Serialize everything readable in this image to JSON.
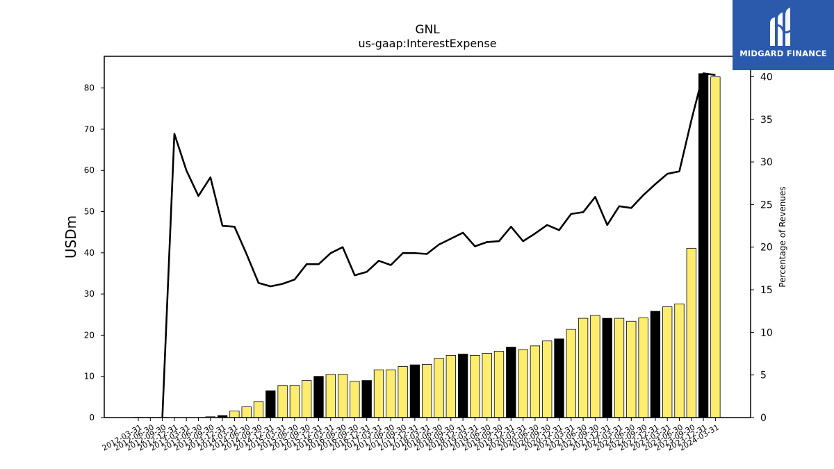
{
  "chart_data": {
    "type": "bar",
    "title": "GNL",
    "subtitle": "us-gaap:InterestExpense",
    "ylabel": "USDm",
    "y2label": "Percentage of Revenues",
    "ylim": [
      0,
      87.7
    ],
    "y2lim": [
      0,
      42.4
    ],
    "yticks": [
      0,
      10,
      20,
      30,
      40,
      50,
      60,
      70,
      80
    ],
    "y2ticks": [
      0,
      5,
      10,
      15,
      20,
      25,
      30,
      35,
      40
    ],
    "grid": false,
    "bar_colors": {
      "quarter": "#fced6f",
      "fiscal_year_end": "#000000"
    },
    "line_color": "#000000",
    "categories": [
      "2012-03-31",
      "2012-06-30",
      "2012-09-30",
      "2012-12-31",
      "2013-03-31",
      "2013-06-30",
      "2013-09-30",
      "2013-12-31",
      "2014-03-31",
      "2014-06-30",
      "2014-09-30",
      "2014-12-31",
      "2015-03-31",
      "2015-06-30",
      "2015-09-30",
      "2015-12-31",
      "2016-03-31",
      "2016-06-30",
      "2016-09-30",
      "2016-12-31",
      "2017-03-31",
      "2017-06-30",
      "2017-09-30",
      "2017-12-31",
      "2018-03-31",
      "2018-06-30",
      "2018-09-30",
      "2018-12-31",
      "2019-03-31",
      "2019-06-30",
      "2019-09-30",
      "2019-12-31",
      "2020-03-31",
      "2020-06-30",
      "2020-09-30",
      "2020-12-31",
      "2021-03-31",
      "2021-06-30",
      "2021-09-30",
      "2021-12-31",
      "2022-03-31",
      "2022-06-30",
      "2022-09-30",
      "2022-12-31",
      "2023-03-31",
      "2023-06-30",
      "2023-09-30",
      "2023-12-31",
      "2024-03-31"
    ],
    "series": [
      {
        "kind": "bar",
        "values": [
          0.05,
          0.05,
          0.05,
          0.0,
          0.0,
          0.0,
          0.2,
          0.5,
          1.6,
          2.6,
          3.9,
          6.5,
          7.8,
          7.8,
          9.0,
          10.0,
          10.5,
          10.5,
          8.8,
          9.0,
          11.6,
          11.6,
          12.4,
          12.8,
          12.9,
          14.4,
          15.1,
          15.4,
          15.1,
          15.6,
          16.1,
          17.1,
          16.5,
          17.4,
          18.6,
          19.1,
          21.4,
          24.1,
          24.8,
          24.1,
          24.1,
          23.4,
          24.2,
          25.8,
          26.9,
          27.6,
          41.1,
          83.5,
          82.7
        ],
        "fiscal_year_end": [
          false,
          false,
          false,
          true,
          false,
          false,
          false,
          true,
          false,
          false,
          false,
          true,
          false,
          false,
          false,
          true,
          false,
          false,
          false,
          true,
          false,
          false,
          false,
          true,
          false,
          false,
          false,
          true,
          false,
          false,
          false,
          true,
          false,
          false,
          false,
          true,
          false,
          false,
          false,
          true,
          false,
          false,
          false,
          true,
          false,
          false,
          false,
          true,
          false
        ]
      },
      {
        "kind": "line",
        "axis": "right",
        "values": [
          null,
          null,
          0.0,
          33.3,
          29.0,
          26.0,
          28.2,
          22.5,
          22.4,
          19.2,
          15.8,
          15.4,
          15.7,
          16.2,
          18.0,
          18.0,
          19.3,
          20.0,
          16.7,
          17.1,
          18.4,
          17.9,
          19.3,
          19.3,
          19.2,
          20.3,
          21.0,
          21.7,
          20.1,
          20.6,
          20.7,
          22.4,
          20.7,
          21.6,
          22.6,
          22.0,
          23.9,
          24.1,
          25.9,
          22.6,
          24.8,
          24.6,
          26.1,
          27.4,
          28.6,
          28.9,
          34.9,
          40.4,
          40.2
        ]
      }
    ]
  },
  "brand": {
    "name": "MIDGARD FINANCE",
    "logo_icon": "midgard-m-logo-icon",
    "background": "#2b5aad"
  }
}
